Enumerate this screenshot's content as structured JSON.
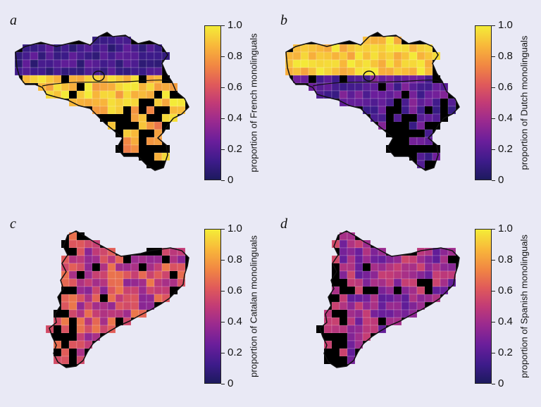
{
  "panels": [
    {
      "letter": "a",
      "colorbar_label": "proportion of French monolinguals",
      "ticks": [
        "0",
        "0.2",
        "0.4",
        "0.6",
        "0.8",
        "1.0"
      ],
      "region": "belgium",
      "scheme": "french"
    },
    {
      "letter": "b",
      "colorbar_label": "proportion of Dutch monolinguals",
      "ticks": [
        "0",
        "0.2",
        "0.4",
        "0.6",
        "0.8",
        "1.0"
      ],
      "region": "belgium",
      "scheme": "dutch"
    },
    {
      "letter": "c",
      "colorbar_label": "proportion of Catalan monolinguals",
      "ticks": [
        "0",
        "0.2",
        "0.4",
        "0.6",
        "0.8",
        "1.0"
      ],
      "region": "catalonia",
      "scheme": "catalan"
    },
    {
      "letter": "d",
      "colorbar_label": "proportion of Spanish monolinguals",
      "ticks": [
        "0",
        "0.2",
        "0.4",
        "0.6",
        "0.8",
        "1.0"
      ],
      "region": "catalonia",
      "scheme": "spanish"
    }
  ],
  "colors": {
    "background": "#e9e9f5",
    "no_data": "#000000",
    "colormap": [
      "#1d1a5e",
      "#3d1b8a",
      "#6a1e9b",
      "#9a2a8f",
      "#c23b76",
      "#e05a5a",
      "#f18643",
      "#f8b73a",
      "#f4ec38"
    ]
  }
}
